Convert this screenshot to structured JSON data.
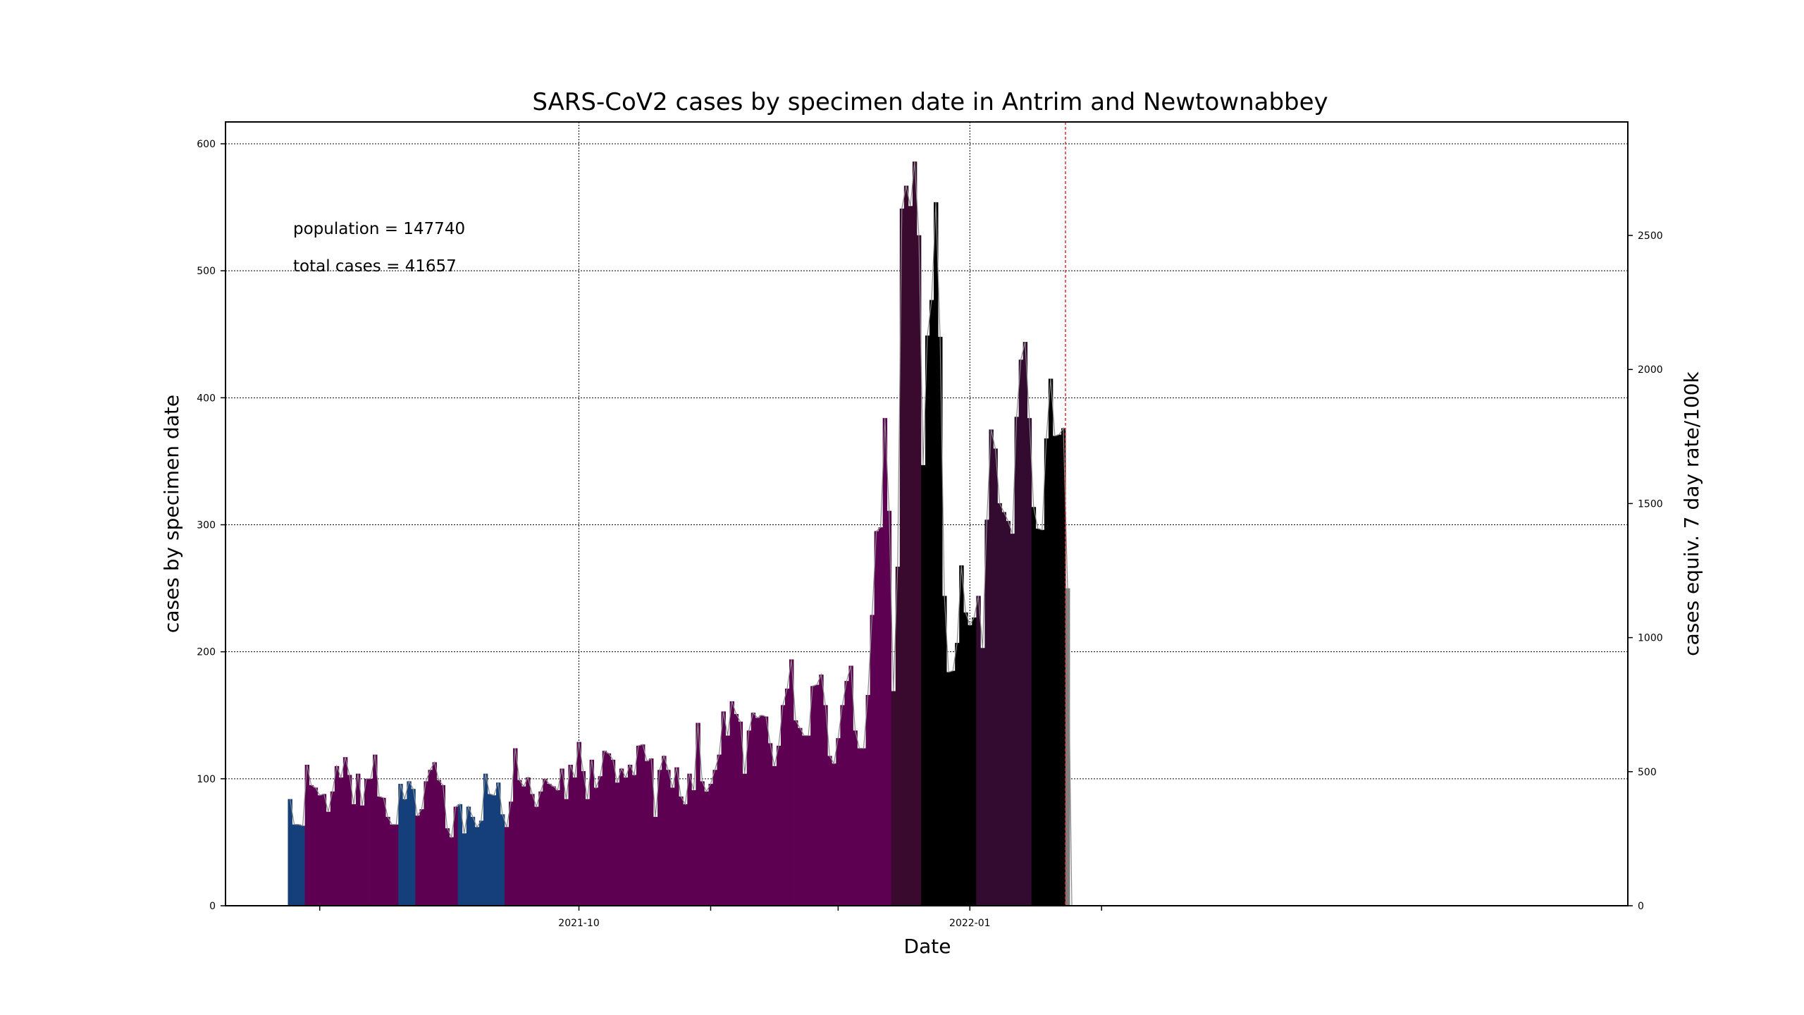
{
  "chart_data": {
    "type": "bar",
    "title": "SARS-CoV2 cases by specimen date in Antrim and Newtownabbey",
    "xlabel": "Date",
    "ylabel": "cases by specimen date",
    "ylabel_right": "cases equiv. 7 day rate/100k",
    "ylim": [
      0,
      617
    ],
    "ylim_right": [
      0,
      2903
    ],
    "yticks": [
      0,
      100,
      200,
      300,
      400,
      500,
      600
    ],
    "yticks_right": [
      0,
      500,
      1000,
      1500,
      2000,
      2500
    ],
    "xtick_labels": [
      "2021-10",
      "2022-01"
    ],
    "start_date": "2021-07-25",
    "annotations": {
      "population": "population = 147740",
      "total_cases": "total cases = 41657"
    },
    "colors": {
      "blue": "#143f7a",
      "purple": "#5e0052",
      "dark_purple": "#3a0a2e",
      "darker_purple": "#330b30",
      "black": "#000000",
      "grey": "#808080",
      "cutoff_line": "#e03030"
    },
    "bands": [
      {
        "from": 0,
        "to": 3,
        "color": "blue"
      },
      {
        "from": 4,
        "to": 25,
        "color": "purple"
      },
      {
        "from": 26,
        "to": 29,
        "color": "blue"
      },
      {
        "from": 30,
        "to": 39,
        "color": "purple"
      },
      {
        "from": 40,
        "to": 50,
        "color": "blue"
      },
      {
        "from": 51,
        "to": 141,
        "color": "purple"
      },
      {
        "from": 142,
        "to": 148,
        "color": "dark_purple"
      },
      {
        "from": 149,
        "to": 161,
        "color": "black"
      },
      {
        "from": 162,
        "to": 174,
        "color": "darker_purple"
      },
      {
        "from": 175,
        "to": 182,
        "color": "black"
      },
      {
        "from": 183,
        "to": 187,
        "color": "grey"
      }
    ],
    "cutoff_index": 182.5,
    "values": [
      84,
      64,
      64,
      63,
      111,
      95,
      93,
      87,
      88,
      74,
      90,
      110,
      101,
      117,
      103,
      80,
      104,
      79,
      100,
      100,
      119,
      86,
      85,
      70,
      64,
      64,
      96,
      84,
      98,
      92,
      71,
      76,
      98,
      107,
      113,
      99,
      95,
      61,
      54,
      78,
      80,
      57,
      78,
      70,
      62,
      67,
      104,
      88,
      87,
      97,
      72,
      62,
      82,
      124,
      99,
      94,
      101,
      88,
      78,
      90,
      100,
      96,
      94,
      91,
      108,
      84,
      111,
      101,
      129,
      106,
      84,
      115,
      93,
      102,
      122,
      120,
      115,
      97,
      108,
      101,
      111,
      103,
      126,
      127,
      114,
      116,
      70,
      107,
      118,
      107,
      93,
      109,
      86,
      80,
      104,
      91,
      144,
      98,
      90,
      96,
      107,
      119,
      153,
      134,
      161,
      151,
      145,
      104,
      138,
      152,
      148,
      150,
      149,
      128,
      110,
      126,
      158,
      171,
      194,
      146,
      140,
      134,
      134,
      173,
      174,
      182,
      158,
      118,
      112,
      132,
      158,
      177,
      189,
      138,
      124,
      124,
      166,
      229,
      295,
      298,
      384,
      311,
      169,
      267,
      549,
      567,
      551,
      586,
      528,
      347,
      449,
      477,
      554,
      448,
      244,
      184,
      185,
      207,
      268,
      231,
      221,
      227,
      244,
      203,
      304,
      375,
      360,
      317,
      310,
      303,
      293,
      385,
      430,
      444,
      384,
      314,
      297,
      296,
      368,
      415,
      370,
      371,
      376,
      250,
      0
    ]
  }
}
